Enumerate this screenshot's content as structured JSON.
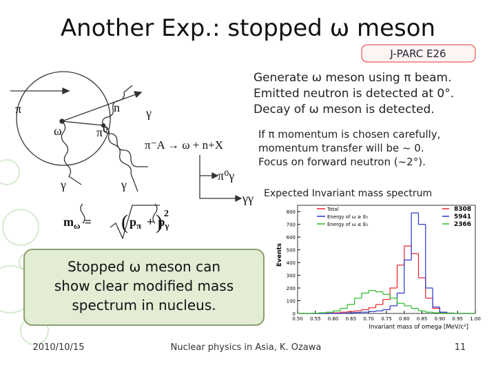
{
  "header": {
    "title": "Another Exp.: stopped ω meson",
    "badge": "J-PARC E26"
  },
  "notes": [
    "Generate ω meson using π beam.",
    "Emitted neutron is detected at 0°.",
    "Decay of ω meson is detected."
  ],
  "notes2": [
    "If π momentum is chosen carefully,",
    "momentum transfer will be ~ 0.",
    "Focus on forward neutron  (~2°)."
  ],
  "diagram": {
    "labels": [
      "π",
      "n",
      "γ",
      "ω",
      "π⁰",
      "γ",
      "γ"
    ],
    "reaction": "π⁻A → ω + n+X",
    "decay1": "π⁰γ",
    "decay2": "γγ",
    "formula": {
      "m": "m",
      "m_sub": "ω",
      "eq": "=",
      "p1": "p",
      "p1_sub": "π",
      "plus": "+",
      "p2": "p",
      "p2_sub": "γ",
      "exp": "2"
    }
  },
  "callout": [
    "Stopped ω meson can",
    "show clear modified mass",
    "spectrum in nucleus."
  ],
  "chart_title": "Expected Invariant mass spectrum",
  "chart_data": {
    "type": "histogram",
    "x_label": "Invariant mass of omega [MeV/c²]",
    "y_label": "Events",
    "bins": [
      0.5,
      0.52,
      0.54,
      0.56,
      0.58,
      0.6,
      0.62,
      0.64,
      0.66,
      0.68,
      0.7,
      0.72,
      0.74,
      0.76,
      0.78,
      0.8,
      0.82,
      0.84,
      0.86,
      0.88,
      0.9,
      0.92,
      0.94,
      0.96,
      0.98,
      1.0
    ],
    "xlim": [
      0.5,
      1.0
    ],
    "ylim": [
      0,
      850
    ],
    "xticks": [
      {
        "value": 0.5,
        "label": "0.50"
      },
      {
        "value": 0.55,
        "label": "0.55"
      },
      {
        "value": 0.6,
        "label": "0.60"
      },
      {
        "value": 0.65,
        "label": "0.65"
      },
      {
        "value": 0.7,
        "label": "0.70"
      },
      {
        "value": 0.75,
        "label": "0.75"
      },
      {
        "value": 0.8,
        "label": "0.80"
      },
      {
        "value": 0.85,
        "label": "0.85"
      },
      {
        "value": 0.9,
        "label": "0.90"
      },
      {
        "value": 0.95,
        "label": "0.95"
      },
      {
        "value": 1.0,
        "label": "1.00"
      }
    ],
    "yticks": [
      0,
      100,
      200,
      300,
      400,
      500,
      600,
      700,
      800
    ],
    "series": [
      {
        "name": "Total",
        "color": "#e8202a",
        "entries": 8308,
        "values": [
          0,
          0,
          0,
          0,
          2,
          5,
          10,
          15,
          20,
          30,
          45,
          70,
          110,
          200,
          380,
          530,
          470,
          280,
          120,
          40,
          10,
          3,
          0,
          0,
          0
        ]
      },
      {
        "name": "Energy of ω ≥ E₀",
        "color": "#2233cc",
        "entries": 5941,
        "values": [
          0,
          0,
          0,
          0,
          0,
          0,
          2,
          5,
          8,
          10,
          15,
          20,
          30,
          60,
          160,
          420,
          790,
          700,
          200,
          50,
          10,
          2,
          0,
          0,
          0
        ]
      },
      {
        "name": "Energy of ω ≤ E₀",
        "color": "#22bb22",
        "entries": 2366,
        "values": [
          0,
          0,
          2,
          5,
          10,
          20,
          40,
          70,
          120,
          160,
          180,
          170,
          150,
          120,
          80,
          60,
          40,
          20,
          10,
          5,
          2,
          0,
          0,
          0,
          0
        ]
      }
    ]
  },
  "footer": {
    "date": "2010/10/15",
    "credit": "Nuclear physics in Asia, K. Ozawa",
    "page": "11"
  }
}
